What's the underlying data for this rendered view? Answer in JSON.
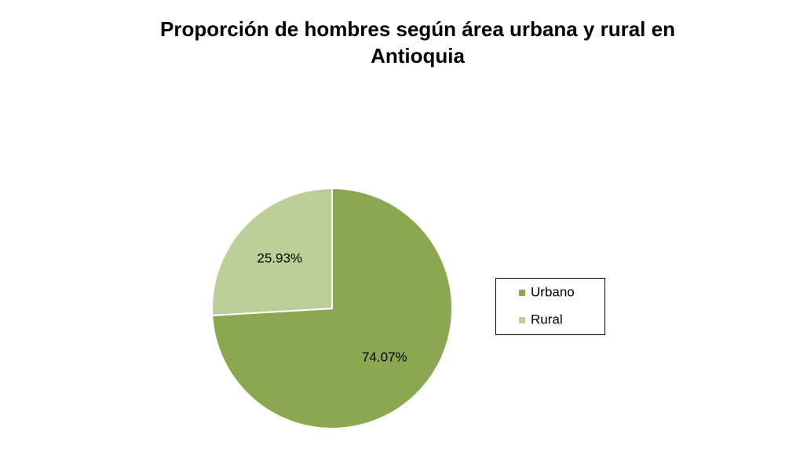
{
  "chart_data": {
    "type": "pie",
    "title": "Proporción de hombres según área urbana y rural en Antioquia",
    "categories": [
      "Urbano",
      "Rural"
    ],
    "values": [
      74.07,
      25.93
    ],
    "value_labels": [
      "74.07%",
      "25.93%"
    ],
    "colors": [
      "#8ba74f",
      "#bccf98"
    ],
    "legend": "right"
  }
}
